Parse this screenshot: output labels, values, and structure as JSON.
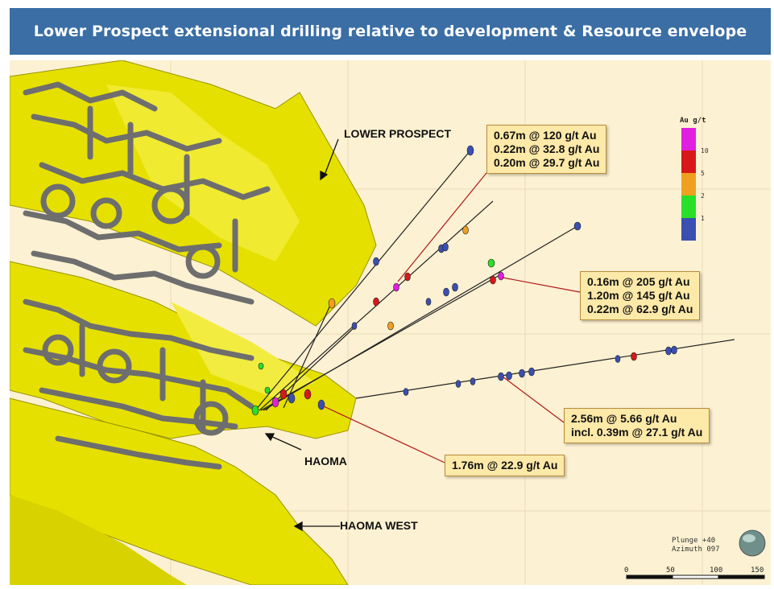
{
  "title": "Lower Prospect extensional drilling relative to development & Resource envelope",
  "labels": {
    "lower_prospect": "LOWER PROSPECT",
    "haoma": "HAOMA",
    "haoma_west": "HAOMA WEST"
  },
  "callouts": [
    {
      "lines": [
        "0.67m @ 120 g/t Au",
        "0.22m @ 32.8 g/t Au",
        "0.20m @ 29.7 g/t Au"
      ]
    },
    {
      "lines": [
        "0.16m @ 205 g/t Au",
        "1.20m @ 145 g/t Au",
        "0.22m @ 62.9 g/t Au"
      ]
    },
    {
      "lines": [
        "2.56m @ 5.66 g/t Au",
        "incl. 0.39m @ 27.1 g/t Au"
      ]
    },
    {
      "lines": [
        "1.76m @ 22.9 g/t Au"
      ]
    }
  ],
  "legend": {
    "title": "Au g/t",
    "items": [
      {
        "color": "#e020e0",
        "label": "10"
      },
      {
        "color": "#d81818",
        "label": "5"
      },
      {
        "color": "#f0a020",
        "label": "2"
      },
      {
        "color": "#28e028",
        "label": "1"
      },
      {
        "color": "#3a4fb0",
        "label": ""
      }
    ]
  },
  "orientation": {
    "plunge": "Plunge +40",
    "azimuth": "Azimuth 097"
  },
  "scale": {
    "ticks": [
      "0",
      "50",
      "100",
      "150"
    ]
  },
  "colors": {
    "header": "#3a6ea5",
    "orebody": "#e6e000",
    "development": "#6e6e6e",
    "background": "#fcf1d2"
  }
}
